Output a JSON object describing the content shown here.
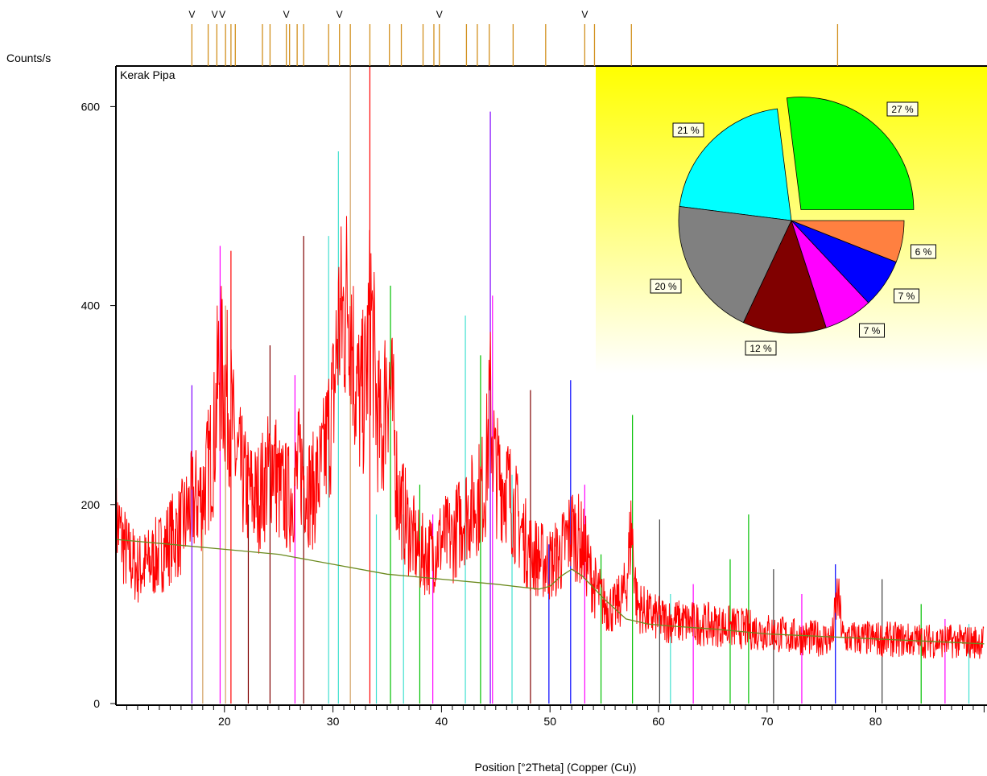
{
  "chart_data": {
    "type": "line",
    "title": "Kerak Pipa",
    "ylabel": "Counts/s",
    "xlabel": "Position [°2Theta] (Copper (Cu))",
    "xlim": [
      10,
      90
    ],
    "ylim": [
      0,
      600
    ],
    "x_ticks": [
      20,
      30,
      40,
      50,
      60,
      70,
      80
    ],
    "y_ticks": [
      0,
      200,
      400,
      600
    ],
    "grid": false,
    "series": [
      {
        "color": "#ff0000",
        "sample_step": 0.25,
        "x": [
          10,
          11,
          12,
          13,
          14,
          15,
          16,
          17,
          18,
          19,
          19.5,
          20,
          20.5,
          21,
          22,
          23,
          24,
          24.5,
          25,
          26,
          27,
          28,
          29,
          30,
          30.5,
          31,
          31.5,
          32,
          32.5,
          33,
          33.5,
          34,
          34.5,
          35,
          35.5,
          36,
          37,
          38,
          39,
          40,
          41,
          42,
          43,
          44,
          44.5,
          45,
          46,
          47,
          48,
          49,
          50,
          51,
          52,
          53,
          54,
          55,
          56,
          57,
          57.5,
          58,
          59,
          60,
          62,
          64,
          66,
          68,
          70,
          72,
          74,
          76,
          76.5,
          77,
          80,
          85,
          90
        ],
        "y": [
          185,
          150,
          135,
          140,
          150,
          165,
          175,
          200,
          210,
          260,
          340,
          320,
          300,
          250,
          215,
          205,
          230,
          250,
          215,
          205,
          240,
          210,
          235,
          300,
          380,
          390,
          420,
          330,
          300,
          320,
          400,
          300,
          260,
          340,
          290,
          210,
          175,
          150,
          150,
          165,
          165,
          190,
          200,
          220,
          300,
          230,
          220,
          185,
          155,
          145,
          140,
          150,
          175,
          160,
          120,
          100,
          95,
          115,
          180,
          100,
          90,
          85,
          82,
          80,
          78,
          75,
          72,
          68,
          66,
          65,
          110,
          66,
          65,
          63,
          62
        ]
      },
      {
        "color": "#6b8a1e",
        "x": [
          10,
          15,
          20,
          25,
          30,
          35,
          40,
          45,
          49,
          50,
          51,
          52,
          53,
          55,
          57,
          59,
          61,
          65,
          70,
          80,
          90
        ],
        "y": [
          165,
          160,
          155,
          150,
          140,
          130,
          125,
          120,
          115,
          118,
          128,
          135,
          128,
          105,
          85,
          80,
          78,
          75,
          70,
          65,
          60
        ]
      }
    ],
    "peaks": [
      {
        "x": 17.0,
        "y": 320,
        "color": "#7f00ff"
      },
      {
        "x": 18.0,
        "y": 210,
        "color": "#d2a060"
      },
      {
        "x": 19.6,
        "y": 460,
        "color": "#ff00ff"
      },
      {
        "x": 20.1,
        "y": 400,
        "color": "#d2a060"
      },
      {
        "x": 20.6,
        "y": 455,
        "color": "#ff0000"
      },
      {
        "x": 22.2,
        "y": 200,
        "color": "#800000"
      },
      {
        "x": 24.2,
        "y": 360,
        "color": "#800000"
      },
      {
        "x": 26.5,
        "y": 330,
        "color": "#ff00ff"
      },
      {
        "x": 27.3,
        "y": 470,
        "color": "#800000"
      },
      {
        "x": 29.6,
        "y": 470,
        "color": "#40e0d0"
      },
      {
        "x": 30.5,
        "y": 555,
        "color": "#40e0d0"
      },
      {
        "x": 31.6,
        "y": 640,
        "color": "#d2a060"
      },
      {
        "x": 33.4,
        "y": 640,
        "color": "#ff0000"
      },
      {
        "x": 34.0,
        "y": 190,
        "color": "#40e0d0"
      },
      {
        "x": 35.3,
        "y": 420,
        "color": "#00c000"
      },
      {
        "x": 36.5,
        "y": 190,
        "color": "#40e0d0"
      },
      {
        "x": 38.0,
        "y": 220,
        "color": "#00c000"
      },
      {
        "x": 39.2,
        "y": 190,
        "color": "#ff00ff"
      },
      {
        "x": 42.2,
        "y": 390,
        "color": "#40e0d0"
      },
      {
        "x": 43.6,
        "y": 350,
        "color": "#00c000"
      },
      {
        "x": 44.5,
        "y": 595,
        "color": "#7f00ff"
      },
      {
        "x": 44.7,
        "y": 410,
        "color": "#ff00ff"
      },
      {
        "x": 46.5,
        "y": 230,
        "color": "#40e0d0"
      },
      {
        "x": 48.2,
        "y": 315,
        "color": "#800000"
      },
      {
        "x": 49.9,
        "y": 160,
        "color": "#0000ff"
      },
      {
        "x": 51.9,
        "y": 325,
        "color": "#0000ff"
      },
      {
        "x": 53.2,
        "y": 220,
        "color": "#ff00ff"
      },
      {
        "x": 54.7,
        "y": 150,
        "color": "#00c000"
      },
      {
        "x": 57.6,
        "y": 290,
        "color": "#00c000"
      },
      {
        "x": 60.1,
        "y": 185,
        "color": "#404040"
      },
      {
        "x": 61.1,
        "y": 110,
        "color": "#40e0d0"
      },
      {
        "x": 63.2,
        "y": 120,
        "color": "#ff00ff"
      },
      {
        "x": 66.6,
        "y": 145,
        "color": "#00c000"
      },
      {
        "x": 68.3,
        "y": 190,
        "color": "#00c000"
      },
      {
        "x": 70.6,
        "y": 135,
        "color": "#404040"
      },
      {
        "x": 73.2,
        "y": 110,
        "color": "#ff00ff"
      },
      {
        "x": 76.3,
        "y": 140,
        "color": "#0000ff"
      },
      {
        "x": 80.6,
        "y": 125,
        "color": "#404040"
      },
      {
        "x": 84.2,
        "y": 100,
        "color": "#00c000"
      },
      {
        "x": 86.4,
        "y": 85,
        "color": "#ff00ff"
      },
      {
        "x": 88.6,
        "y": 80,
        "color": "#40e0d0"
      }
    ],
    "reference_lines": [
      17.0,
      18.5,
      19.3,
      20.1,
      20.6,
      21.0,
      23.5,
      24.2,
      25.7,
      26.0,
      26.7,
      27.3,
      29.6,
      30.6,
      31.6,
      33.4,
      35.2,
      36.3,
      38.3,
      39.3,
      39.8,
      42.3,
      43.3,
      44.4,
      46.6,
      49.6,
      53.2,
      54.1,
      57.5,
      76.5
    ],
    "reference_markers": [
      17.0,
      19.1,
      19.8,
      25.7,
      30.6,
      39.8,
      53.2
    ],
    "reference_marker_symbol": "V",
    "inset_pie": {
      "type": "pie",
      "slices": [
        {
          "label": "27 %",
          "value": 27,
          "color": "#00ff00",
          "exploded": true
        },
        {
          "label": "21 %",
          "value": 21,
          "color": "#00ffff"
        },
        {
          "label": "20 %",
          "value": 20,
          "color": "#808080"
        },
        {
          "label": "12 %",
          "value": 12,
          "color": "#800000"
        },
        {
          "label": "7 %",
          "value": 7,
          "color": "#ff00ff"
        },
        {
          "label": "7 %",
          "value": 7,
          "color": "#0000ff"
        },
        {
          "label": "6 %",
          "value": 6,
          "color": "#ff8040"
        }
      ],
      "background_gradient": [
        "#ffff00",
        "#ffffff"
      ]
    }
  }
}
